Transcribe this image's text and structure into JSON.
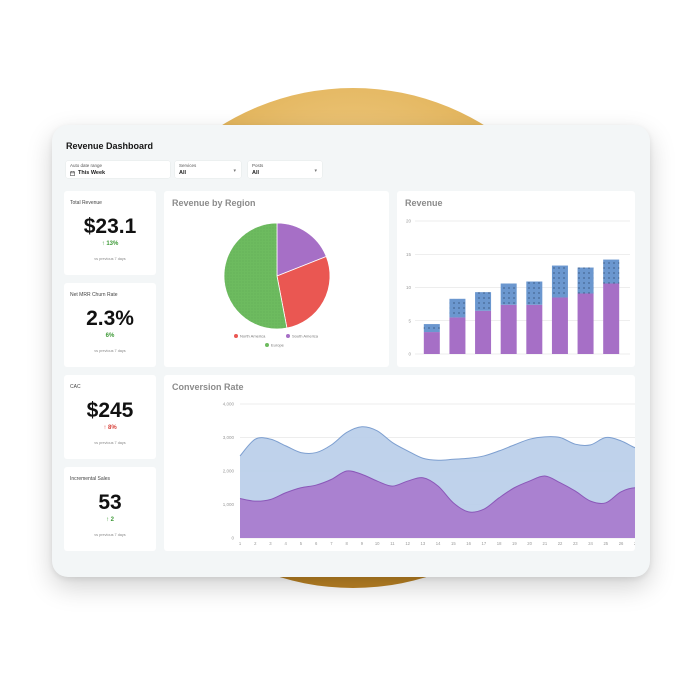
{
  "dashboard": {
    "title": "Revenue Dashboard",
    "filters": [
      {
        "label": "Auto date range",
        "value": "This Week",
        "icon": "calendar-icon"
      },
      {
        "label": "Services",
        "value": "All",
        "icon": "chevron-down-icon"
      },
      {
        "label": "Posts",
        "value": "All",
        "icon": "chevron-down-icon"
      }
    ]
  },
  "kpis": [
    {
      "label": "Total Revenue",
      "value": "$23.1",
      "delta": "13%",
      "direction": "up",
      "sub": "vs previous 7 days"
    },
    {
      "label": "Net MRR Churn Rate",
      "value": "2.3%",
      "delta": "6%",
      "direction": "none",
      "sub": "vs previous 7 days"
    },
    {
      "label": "CAC",
      "value": "$245",
      "delta": "8%",
      "direction": "down",
      "sub": "vs previous 7 days"
    },
    {
      "label": "Incremental Sales",
      "value": "53",
      "delta": "2",
      "direction": "up",
      "sub": "vs previous 7 days"
    }
  ],
  "colors": {
    "green": "#6dbb5f",
    "red": "#ea5752",
    "purple": "#a66fc6",
    "blue": "#6b97cf",
    "area_blue": "#bcd0ea",
    "area_purple": "#a97ccf",
    "halo": "#d9a84a"
  },
  "chart_data": [
    {
      "type": "pie",
      "title": "Revenue by Region",
      "slices": [
        {
          "name": "Europe",
          "value": 53,
          "color": "#6dbb5f"
        },
        {
          "name": "North America",
          "value": 28,
          "color": "#ea5752"
        },
        {
          "name": "South America",
          "value": 19,
          "color": "#a66fc6"
        }
      ],
      "legend": [
        "North America",
        "South America",
        "Europe"
      ],
      "legend_position": "bottom"
    },
    {
      "type": "bar",
      "title": "Revenue",
      "stacked": true,
      "categories": [
        "",
        "",
        "",
        "",
        "",
        "",
        "",
        ""
      ],
      "series": [
        {
          "values": [
            3.3,
            5.5,
            6.5,
            7.4,
            7.4,
            8.5,
            9.1,
            10.6
          ],
          "color": "#a66fc6"
        },
        {
          "values": [
            1.2,
            2.8,
            2.8,
            3.2,
            3.5,
            4.8,
            3.9,
            3.6
          ],
          "color": "#6b97cf"
        }
      ],
      "ylim": [
        0,
        20
      ],
      "y_ticks": [
        "0",
        "5",
        "10",
        "15",
        "20"
      ],
      "grid": true
    },
    {
      "type": "area",
      "title": "Conversion Rate",
      "x": [
        "1",
        "2",
        "3",
        "4",
        "5",
        "6",
        "7",
        "8",
        "9",
        "10",
        "11",
        "12",
        "13",
        "14",
        "15",
        "16",
        "17",
        "18",
        "19",
        "20",
        "21",
        "22",
        "23",
        "24",
        "25",
        "26",
        "27",
        "28",
        "29",
        "30"
      ],
      "series": [
        {
          "values": [
            2450,
            2950,
            2950,
            2750,
            2550,
            2550,
            2780,
            3150,
            3320,
            3200,
            2850,
            2600,
            2380,
            2320,
            2350,
            2380,
            2450,
            2600,
            2780,
            2950,
            3020,
            3000,
            2800,
            2780,
            3000,
            2900,
            2680,
            2580,
            2420,
            2180
          ],
          "color": "#bcd0ea"
        },
        {
          "values": [
            1180,
            1100,
            1150,
            1350,
            1500,
            1580,
            1750,
            2000,
            1900,
            1700,
            1550,
            1700,
            1800,
            1550,
            1050,
            780,
            860,
            1200,
            1500,
            1700,
            1850,
            1650,
            1400,
            1100,
            1050,
            1380,
            1500,
            1350,
            1300,
            1480
          ],
          "color": "#a97ccf"
        }
      ],
      "ylim": [
        0,
        4000
      ],
      "y_ticks": [
        "0",
        "1,000",
        "2,000",
        "3,000",
        "4,000"
      ],
      "grid": true
    }
  ]
}
